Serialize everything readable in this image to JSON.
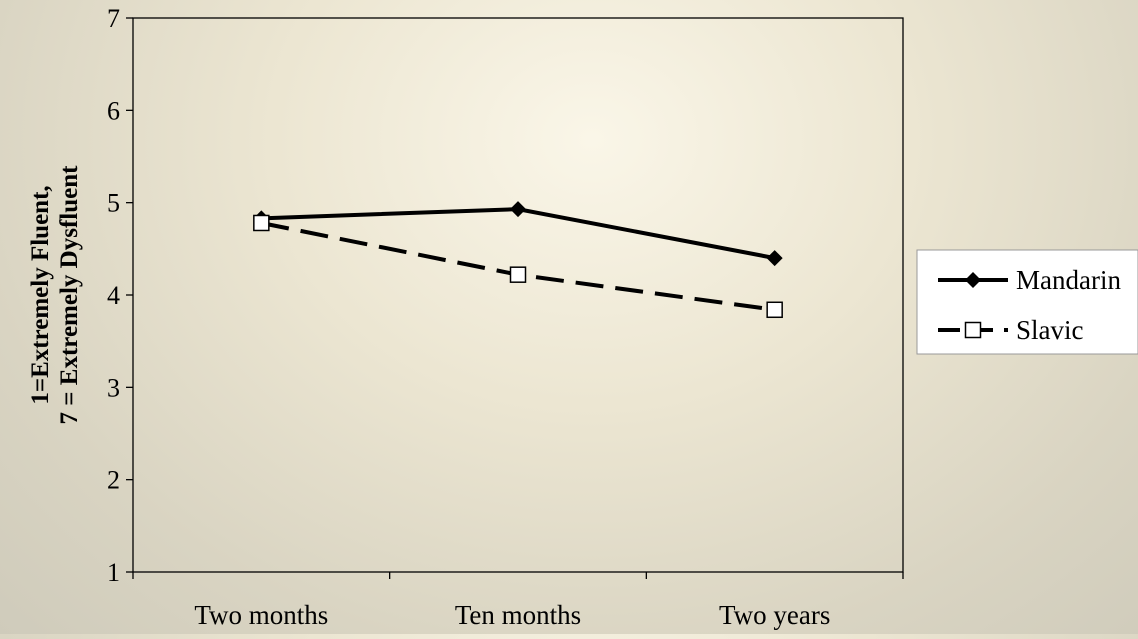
{
  "chart_data": {
    "type": "line",
    "title": "",
    "xlabel": "",
    "ylabel_lines": [
      "1=Extremely Fluent,",
      "7 = Extremely Dysfluent"
    ],
    "categories": [
      "Two months",
      "Ten months",
      "Two years"
    ],
    "ylim": [
      1,
      7
    ],
    "yticks": [
      "1",
      "2",
      "3",
      "4",
      "5",
      "6",
      "7"
    ],
    "grid": false,
    "legend_position": "right",
    "series": [
      {
        "name": "Mandarin",
        "values": [
          4.83,
          4.93,
          4.4
        ],
        "marker": "diamond-filled",
        "line_style": "solid",
        "color": "#000000"
      },
      {
        "name": "Slavic",
        "values": [
          4.78,
          4.22,
          3.84
        ],
        "marker": "square-open",
        "line_style": "dashed",
        "color": "#000000"
      }
    ]
  },
  "colors": {
    "line": "#000000",
    "marker_fill_open": "#ffffff",
    "legend_background": "#ffffff"
  }
}
